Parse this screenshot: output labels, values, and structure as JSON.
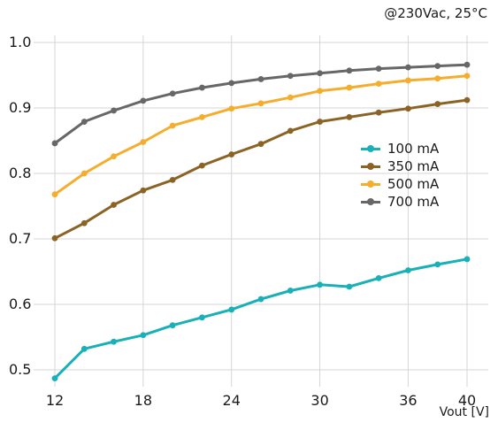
{
  "chart_data": {
    "type": "line",
    "annotation": "@230Vac, 25°C",
    "xlabel": "Vout [V]",
    "ylabel": "",
    "x": [
      12,
      14,
      16,
      18,
      20,
      22,
      24,
      26,
      28,
      30,
      32,
      34,
      36,
      38,
      40
    ],
    "xticks": [
      12,
      18,
      24,
      30,
      36,
      40
    ],
    "yticks": [
      0.5,
      0.6,
      0.7,
      0.8,
      0.9,
      1.0
    ],
    "ytick_labels": [
      "0.5",
      "0.6",
      "0.7",
      "0.8",
      "0.9",
      "1.0"
    ],
    "xlim": [
      12,
      40
    ],
    "ylim": [
      0.48,
      1.02
    ],
    "grid": true,
    "legend_position": "right-middle",
    "series": [
      {
        "name": "100 mA",
        "color": "#1ab0b8",
        "values": [
          0.487,
          0.532,
          0.543,
          0.553,
          0.568,
          0.58,
          0.592,
          0.608,
          0.621,
          0.63,
          0.627,
          0.64,
          0.652,
          0.661,
          0.669
        ]
      },
      {
        "name": "350 mA",
        "color": "#8b6425",
        "values": [
          0.701,
          0.724,
          0.752,
          0.774,
          0.79,
          0.812,
          0.829,
          0.845,
          0.865,
          0.879,
          0.886,
          0.893,
          0.899,
          0.906,
          0.912
        ]
      },
      {
        "name": "500 mA",
        "color": "#f5ad2e",
        "values": [
          0.768,
          0.8,
          0.826,
          0.848,
          0.873,
          0.886,
          0.899,
          0.907,
          0.916,
          0.926,
          0.931,
          0.937,
          0.942,
          0.945,
          0.949
        ]
      },
      {
        "name": "700 mA",
        "color": "#676767",
        "values": [
          0.846,
          0.879,
          0.896,
          0.911,
          0.922,
          0.931,
          0.938,
          0.944,
          0.949,
          0.953,
          0.957,
          0.96,
          0.962,
          0.964,
          0.966
        ]
      }
    ]
  }
}
